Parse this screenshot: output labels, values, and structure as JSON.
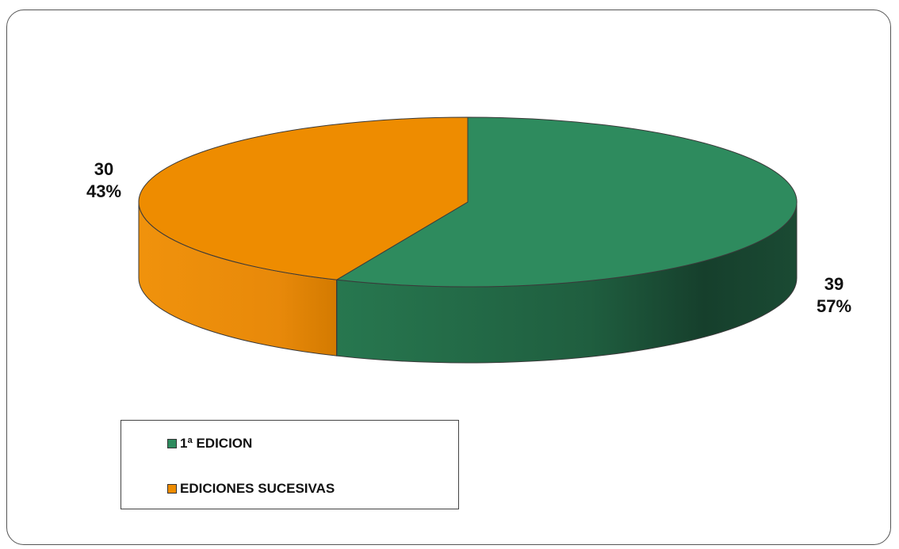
{
  "chart_data": {
    "type": "pie",
    "title": "",
    "slices": [
      {
        "label": "1ª EDICION",
        "value": 39,
        "percent": "57%",
        "color": "#2e8b5e"
      },
      {
        "label": "EDICIONES SUCESIVAS",
        "value": 30,
        "percent": "43%",
        "color": "#ee8c00"
      }
    ],
    "style": "3d",
    "legend_position": "bottom-left"
  },
  "labels": {
    "slice0_value": "39",
    "slice0_percent": "57%",
    "slice1_value": "30",
    "slice1_percent": "43%"
  },
  "legend": {
    "item0": "1ª EDICION",
    "item1": "EDICIONES SUCESIVAS"
  }
}
